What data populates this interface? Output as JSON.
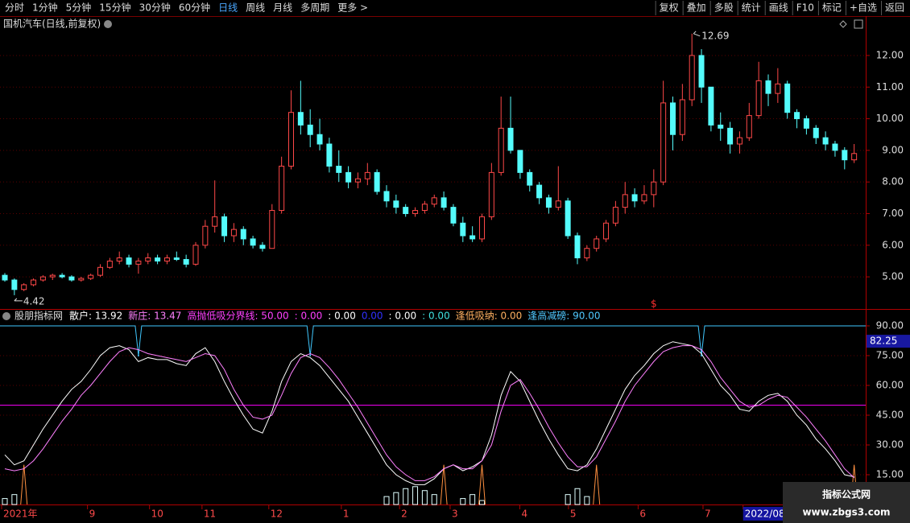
{
  "toolbar": {
    "left": [
      "分时",
      "1分钟",
      "5分钟",
      "15分钟",
      "30分钟",
      "60分钟",
      "日线",
      "周线",
      "月线",
      "多周期",
      "更多 >"
    ],
    "active_index": 6,
    "right": [
      "复权",
      "叠加",
      "多股",
      "统计",
      "画线",
      "F10",
      "标记",
      "+自选",
      "返回"
    ]
  },
  "stock": {
    "title": "国机汽车(日线,前复权)",
    "ylim": [
      4.01,
      13.22
    ],
    "yticks": [
      {
        "value": 5,
        "label": "5.00"
      },
      {
        "value": 6,
        "label": "6.00"
      },
      {
        "value": 7,
        "label": "7.00"
      },
      {
        "value": 8,
        "label": "8.00"
      },
      {
        "value": 9,
        "label": "9.00"
      },
      {
        "value": 10,
        "label": "10.00"
      },
      {
        "value": 11,
        "label": "11.00"
      },
      {
        "value": 12,
        "label": "12.00"
      }
    ],
    "up_color": "#ff4848",
    "down_color": "#54fcfc",
    "ohlc": [
      [
        5.05,
        5.12,
        4.85,
        4.9
      ],
      [
        4.9,
        4.95,
        4.42,
        4.6
      ],
      [
        4.6,
        4.8,
        4.55,
        4.75
      ],
      [
        4.75,
        4.95,
        4.7,
        4.9
      ],
      [
        4.9,
        5.05,
        4.85,
        5.0
      ],
      [
        5.0,
        5.1,
        4.9,
        5.05
      ],
      [
        5.05,
        5.12,
        4.95,
        5.0
      ],
      [
        5.0,
        5.05,
        4.85,
        4.9
      ],
      [
        4.9,
        5.0,
        4.85,
        4.95
      ],
      [
        4.95,
        5.1,
        4.9,
        5.05
      ],
      [
        5.05,
        5.4,
        5.0,
        5.3
      ],
      [
        5.3,
        5.6,
        5.25,
        5.5
      ],
      [
        5.5,
        5.8,
        5.4,
        5.6
      ],
      [
        5.6,
        5.7,
        5.3,
        5.4
      ],
      [
        5.4,
        5.6,
        5.1,
        5.5
      ],
      [
        5.5,
        5.75,
        5.4,
        5.6
      ],
      [
        5.6,
        5.7,
        5.4,
        5.5
      ],
      [
        5.5,
        5.7,
        5.4,
        5.6
      ],
      [
        5.6,
        5.8,
        5.5,
        5.55
      ],
      [
        5.55,
        5.7,
        5.3,
        5.4
      ],
      [
        5.4,
        6.1,
        5.35,
        6.0
      ],
      [
        6.0,
        6.8,
        5.9,
        6.6
      ],
      [
        6.6,
        8.05,
        6.4,
        6.9
      ],
      [
        6.9,
        7.0,
        6.1,
        6.3
      ],
      [
        6.3,
        6.7,
        6.1,
        6.5
      ],
      [
        6.5,
        6.6,
        6.0,
        6.2
      ],
      [
        6.2,
        6.3,
        5.9,
        6.0
      ],
      [
        6.0,
        6.1,
        5.8,
        5.9
      ],
      [
        5.9,
        7.3,
        5.9,
        7.1
      ],
      [
        7.1,
        8.8,
        7.0,
        8.5
      ],
      [
        8.5,
        10.9,
        8.4,
        10.2
      ],
      [
        10.2,
        11.2,
        9.5,
        9.8
      ],
      [
        9.8,
        10.3,
        9.1,
        9.5
      ],
      [
        9.5,
        10.0,
        9.0,
        9.2
      ],
      [
        9.2,
        9.4,
        8.3,
        8.5
      ],
      [
        8.5,
        9.0,
        8.0,
        8.3
      ],
      [
        8.3,
        8.5,
        7.8,
        8.0
      ],
      [
        8.0,
        8.3,
        7.8,
        8.1
      ],
      [
        8.1,
        8.6,
        7.9,
        8.3
      ],
      [
        8.3,
        8.4,
        7.6,
        7.7
      ],
      [
        7.7,
        7.9,
        7.2,
        7.4
      ],
      [
        7.4,
        7.6,
        7.0,
        7.2
      ],
      [
        7.2,
        7.3,
        6.9,
        7.0
      ],
      [
        7.0,
        7.2,
        6.9,
        7.1
      ],
      [
        7.1,
        7.4,
        7.0,
        7.3
      ],
      [
        7.3,
        7.6,
        7.2,
        7.5
      ],
      [
        7.5,
        7.7,
        7.1,
        7.2
      ],
      [
        7.2,
        7.3,
        6.6,
        6.7
      ],
      [
        6.7,
        6.9,
        6.1,
        6.3
      ],
      [
        6.3,
        6.6,
        6.1,
        6.2
      ],
      [
        6.2,
        7.0,
        6.1,
        6.9
      ],
      [
        6.9,
        8.6,
        6.8,
        8.3
      ],
      [
        8.3,
        10.7,
        8.2,
        9.7
      ],
      [
        9.7,
        10.7,
        8.9,
        9.0
      ],
      [
        9.0,
        9.0,
        8.1,
        8.3
      ],
      [
        8.3,
        8.4,
        7.7,
        7.9
      ],
      [
        7.9,
        8.0,
        7.3,
        7.5
      ],
      [
        7.5,
        7.6,
        7.0,
        7.2
      ],
      [
        7.2,
        8.5,
        7.1,
        7.4
      ],
      [
        7.4,
        7.5,
        6.2,
        6.3
      ],
      [
        6.3,
        6.4,
        5.4,
        5.6
      ],
      [
        5.6,
        6.0,
        5.5,
        5.9
      ],
      [
        5.9,
        6.3,
        5.8,
        6.2
      ],
      [
        6.2,
        6.8,
        6.1,
        6.7
      ],
      [
        6.7,
        7.4,
        6.6,
        7.2
      ],
      [
        7.2,
        8.0,
        7.0,
        7.6
      ],
      [
        7.6,
        7.8,
        7.2,
        7.4
      ],
      [
        7.4,
        7.9,
        7.3,
        7.6
      ],
      [
        7.6,
        8.4,
        7.2,
        8.0
      ],
      [
        8.0,
        11.2,
        7.9,
        10.5
      ],
      [
        10.5,
        10.7,
        9.0,
        9.5
      ],
      [
        9.5,
        11.1,
        9.3,
        10.6
      ],
      [
        10.6,
        12.69,
        10.4,
        12.0
      ],
      [
        12.0,
        12.2,
        10.5,
        11.0
      ],
      [
        11.0,
        11.0,
        9.6,
        9.8
      ],
      [
        9.8,
        10.2,
        9.3,
        9.7
      ],
      [
        9.7,
        9.9,
        8.9,
        9.2
      ],
      [
        9.2,
        9.6,
        8.9,
        9.4
      ],
      [
        9.4,
        10.5,
        9.3,
        10.1
      ],
      [
        10.1,
        11.8,
        10.0,
        11.2
      ],
      [
        11.2,
        11.4,
        10.4,
        10.8
      ],
      [
        10.8,
        11.6,
        10.5,
        11.1
      ],
      [
        11.1,
        11.2,
        10.0,
        10.2
      ],
      [
        10.2,
        10.3,
        9.7,
        10.0
      ],
      [
        10.0,
        10.1,
        9.5,
        9.7
      ],
      [
        9.7,
        9.8,
        9.2,
        9.4
      ],
      [
        9.4,
        9.6,
        9.0,
        9.2
      ],
      [
        9.2,
        9.3,
        8.8,
        9.0
      ],
      [
        9.0,
        9.1,
        8.4,
        8.7
      ],
      [
        8.7,
        9.2,
        8.6,
        8.9
      ]
    ],
    "high_label": {
      "index": 72,
      "value": 12.69
    },
    "low_label": {
      "index": 1,
      "value": 4.42
    },
    "marker": {
      "index": 68,
      "label": "$"
    }
  },
  "indicator": {
    "name": "股朋指标网",
    "legend": [
      {
        "text": "散户: 13.92",
        "color": "#ffffff"
      },
      {
        "text": "新庄: 13.47",
        "color": "#ff80ff"
      },
      {
        "text": "高抛低吸分界线: 50.00",
        "color": "#ff40ff"
      },
      {
        "text": ": 0.00",
        "color": "#ff40ff"
      },
      {
        "text": ": 0.00",
        "color": "#ffffff"
      },
      {
        "text": "0.00",
        "color": "#3030ff"
      },
      {
        "text": ": 0.00",
        "color": "#ffffff"
      },
      {
        "text": ": 0.00",
        "color": "#40e0e0"
      },
      {
        "text": "逢低吸纳: 0.00",
        "color": "#ffb060"
      },
      {
        "text": "逢高减磅: 90.00",
        "color": "#50c8ff"
      }
    ],
    "ylim": [
      0,
      98.1
    ],
    "yticks": [
      {
        "value": 15,
        "label": "15.00"
      },
      {
        "value": 30,
        "label": "30.00"
      },
      {
        "value": 45,
        "label": "45.00"
      },
      {
        "value": 60,
        "label": "60.00"
      },
      {
        "value": 75,
        "label": "75.00"
      },
      {
        "value": 90,
        "label": "90.00"
      }
    ],
    "cursor_value": 82.25,
    "series": [
      {
        "color": "#ffffff",
        "values": [
          25,
          20,
          22,
          30,
          38,
          45,
          52,
          58,
          62,
          68,
          75,
          79,
          80,
          78,
          72,
          74,
          73,
          73,
          71,
          70,
          76,
          79,
          72,
          62,
          53,
          45,
          38,
          36,
          47,
          62,
          72,
          76,
          74,
          70,
          64,
          58,
          52,
          44,
          36,
          28,
          20,
          15,
          12,
          10,
          10,
          13,
          18,
          20,
          17,
          19,
          22,
          35,
          55,
          67,
          62,
          52,
          42,
          33,
          25,
          18,
          17,
          20,
          28,
          38,
          48,
          58,
          65,
          70,
          76,
          80,
          82,
          81,
          80,
          76,
          68,
          60,
          55,
          48,
          47,
          52,
          55,
          56,
          52,
          45,
          40,
          33,
          28,
          22,
          15,
          13.92
        ]
      },
      {
        "color": "#ff80ff",
        "values": [
          18,
          17,
          18,
          22,
          28,
          35,
          42,
          48,
          55,
          60,
          66,
          72,
          77,
          79,
          78,
          76,
          75,
          74,
          73,
          72,
          74,
          76,
          75,
          68,
          58,
          50,
          44,
          43,
          45,
          55,
          66,
          74,
          76,
          74,
          69,
          63,
          56,
          49,
          41,
          33,
          25,
          19,
          15,
          12,
          12,
          14,
          18,
          20,
          18,
          18,
          22,
          30,
          47,
          60,
          63,
          56,
          48,
          39,
          31,
          24,
          19,
          19,
          24,
          33,
          42,
          52,
          60,
          66,
          72,
          77,
          79,
          80,
          80,
          78,
          72,
          64,
          58,
          52,
          49,
          50,
          53,
          55,
          54,
          49,
          44,
          38,
          32,
          25,
          18,
          13.47
        ]
      }
    ],
    "divider": {
      "value": 50,
      "color": "#ff00ff"
    },
    "sell_line": {
      "value": 90,
      "color": "#40c8ff",
      "dips": [
        {
          "index": 14,
          "value": 75
        },
        {
          "index": 32,
          "value": 75
        },
        {
          "index": 73,
          "value": 75
        }
      ]
    },
    "buy_spikes": {
      "color": "#ff9040",
      "points": [
        {
          "index": 2,
          "value": 20
        },
        {
          "index": 46,
          "value": 20
        },
        {
          "index": 50,
          "value": 20
        },
        {
          "index": 62,
          "value": 20
        },
        {
          "index": 89,
          "value": 20
        }
      ]
    },
    "histogram": {
      "color": "#e0ffff",
      "bars": [
        {
          "index": 0,
          "value": 3
        },
        {
          "index": 1,
          "value": 5
        },
        {
          "index": 40,
          "value": 4
        },
        {
          "index": 41,
          "value": 6
        },
        {
          "index": 42,
          "value": 8
        },
        {
          "index": 43,
          "value": 9
        },
        {
          "index": 44,
          "value": 7
        },
        {
          "index": 45,
          "value": 5
        },
        {
          "index": 48,
          "value": 3
        },
        {
          "index": 49,
          "value": 5
        },
        {
          "index": 50,
          "value": 2
        },
        {
          "index": 59,
          "value": 5
        },
        {
          "index": 60,
          "value": 8
        },
        {
          "index": 61,
          "value": 4
        }
      ]
    }
  },
  "x_labels": [
    {
      "index": 0,
      "label": "2021年"
    },
    {
      "index": 9,
      "label": "9"
    },
    {
      "index": 15.5,
      "label": "10"
    },
    {
      "index": 21,
      "label": "11"
    },
    {
      "index": 28,
      "label": "12"
    },
    {
      "index": 35.6,
      "label": "1"
    },
    {
      "index": 41.7,
      "label": "2"
    },
    {
      "index": 47,
      "label": "3"
    },
    {
      "index": 54.3,
      "label": "4"
    },
    {
      "index": 59.4,
      "label": "5"
    },
    {
      "index": 66.7,
      "label": "6"
    },
    {
      "index": 73.5,
      "label": "7"
    },
    {
      "index": 77.7,
      "label": "2022/08",
      "highlight": true
    }
  ],
  "watermark": {
    "title": "指标公式网",
    "url": "www.zbgs3.com"
  }
}
